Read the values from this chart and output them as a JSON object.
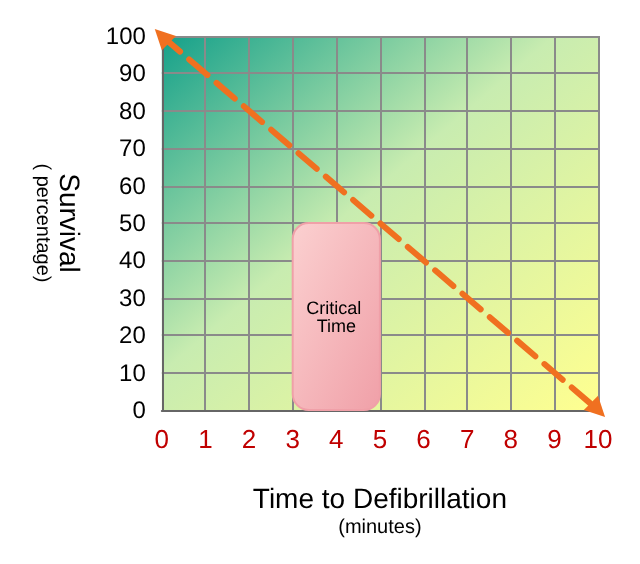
{
  "chart_data": {
    "type": "line",
    "xlabel": "Time to Defibrillation\n(minutes)",
    "ylabel": "Survival\n( percentage)",
    "x": [
      0,
      10
    ],
    "series": [
      {
        "color": "#f07020",
        "values": [
          100,
          0
        ]
      }
    ],
    "xlim": [
      0,
      10
    ],
    "xticks": [
      0,
      1,
      2,
      3,
      4,
      5,
      6,
      7,
      8,
      9,
      10
    ],
    "ylim": [
      0,
      100
    ],
    "yticks": [
      0,
      10,
      20,
      30,
      40,
      50,
      60,
      70,
      80,
      90,
      100
    ],
    "bands": [
      {
        "axis": "x",
        "from": 3,
        "to": 5,
        "label": "Critical Time",
        "color": "#f0a0a8"
      }
    ],
    "grid": true,
    "marker": "triangle",
    "line_style": "dashed"
  }
}
